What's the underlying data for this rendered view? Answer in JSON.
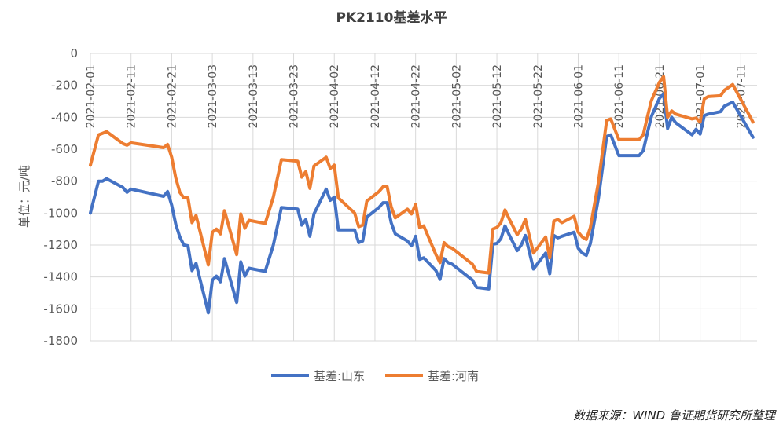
{
  "chart_data": {
    "type": "line",
    "title": "PK2110基差水平",
    "ylabel": "单位：元/吨",
    "xlabel": "",
    "ylim": [
      -1800,
      0
    ],
    "yticks": [
      0,
      -200,
      -400,
      -600,
      -800,
      -1000,
      -1200,
      -1400,
      -1600,
      -1800
    ],
    "ytick_labels": [
      "0",
      "-200",
      "-400",
      "-600",
      "-800",
      "-1000",
      "-1200",
      "-1400",
      "-1600",
      "-1800"
    ],
    "xlim": [
      "2021-02-01",
      "2021-07-15"
    ],
    "xticks": [
      "2021-02-01",
      "2021-02-11",
      "2021-02-21",
      "2021-03-03",
      "2021-03-13",
      "2021-03-23",
      "2021-04-02",
      "2021-04-12",
      "2021-04-22",
      "2021-05-02",
      "2021-05-12",
      "2021-05-22",
      "2021-06-01",
      "2021-06-11",
      "2021-06-21",
      "2021-07-01",
      "2021-07-11"
    ],
    "grid": true,
    "legend_position": "bottom",
    "series": [
      {
        "name": "基差:山东",
        "color": "#4472C4",
        "points": [
          [
            "2021-02-01",
            -1000
          ],
          [
            "2021-02-03",
            -800
          ],
          [
            "2021-02-04",
            -800
          ],
          [
            "2021-02-05",
            -785
          ],
          [
            "2021-02-09",
            -840
          ],
          [
            "2021-02-10",
            -870
          ],
          [
            "2021-02-11",
            -850
          ],
          [
            "2021-02-19",
            -895
          ],
          [
            "2021-02-20",
            -865
          ],
          [
            "2021-02-21",
            -950
          ],
          [
            "2021-02-22",
            -1070
          ],
          [
            "2021-02-23",
            -1150
          ],
          [
            "2021-02-24",
            -1200
          ],
          [
            "2021-02-25",
            -1205
          ],
          [
            "2021-02-26",
            -1360
          ],
          [
            "2021-02-27",
            -1315
          ],
          [
            "2021-03-01",
            -1520
          ],
          [
            "2021-03-02",
            -1625
          ],
          [
            "2021-03-03",
            -1420
          ],
          [
            "2021-03-04",
            -1395
          ],
          [
            "2021-03-05",
            -1430
          ],
          [
            "2021-03-06",
            -1285
          ],
          [
            "2021-03-09",
            -1560
          ],
          [
            "2021-03-10",
            -1305
          ],
          [
            "2021-03-11",
            -1395
          ],
          [
            "2021-03-12",
            -1345
          ],
          [
            "2021-03-16",
            -1365
          ],
          [
            "2021-03-18",
            -1200
          ],
          [
            "2021-03-20",
            -965
          ],
          [
            "2021-03-24",
            -975
          ],
          [
            "2021-03-25",
            -1075
          ],
          [
            "2021-03-26",
            -1040
          ],
          [
            "2021-03-27",
            -1145
          ],
          [
            "2021-03-28",
            -1005
          ],
          [
            "2021-03-31",
            -850
          ],
          [
            "2021-04-01",
            -920
          ],
          [
            "2021-04-02",
            -900
          ],
          [
            "2021-04-03",
            -1105
          ],
          [
            "2021-04-07",
            -1105
          ],
          [
            "2021-04-08",
            -1185
          ],
          [
            "2021-04-09",
            -1175
          ],
          [
            "2021-04-10",
            -1025
          ],
          [
            "2021-04-13",
            -965
          ],
          [
            "2021-04-14",
            -935
          ],
          [
            "2021-04-15",
            -935
          ],
          [
            "2021-04-16",
            -1060
          ],
          [
            "2021-04-17",
            -1130
          ],
          [
            "2021-04-20",
            -1175
          ],
          [
            "2021-04-21",
            -1205
          ],
          [
            "2021-04-22",
            -1145
          ],
          [
            "2021-04-23",
            -1290
          ],
          [
            "2021-04-24",
            -1280
          ],
          [
            "2021-04-27",
            -1360
          ],
          [
            "2021-04-28",
            -1415
          ],
          [
            "2021-04-29",
            -1285
          ],
          [
            "2021-04-30",
            -1310
          ],
          [
            "2021-05-01",
            -1320
          ],
          [
            "2021-05-06",
            -1420
          ],
          [
            "2021-05-07",
            -1465
          ],
          [
            "2021-05-10",
            -1475
          ],
          [
            "2021-05-11",
            -1195
          ],
          [
            "2021-05-12",
            -1190
          ],
          [
            "2021-05-13",
            -1160
          ],
          [
            "2021-05-14",
            -1080
          ],
          [
            "2021-05-15",
            -1135
          ],
          [
            "2021-05-17",
            -1235
          ],
          [
            "2021-05-18",
            -1200
          ],
          [
            "2021-05-19",
            -1140
          ],
          [
            "2021-05-21",
            -1350
          ],
          [
            "2021-05-24",
            -1250
          ],
          [
            "2021-05-25",
            -1380
          ],
          [
            "2021-05-26",
            -1140
          ],
          [
            "2021-05-27",
            -1155
          ],
          [
            "2021-05-28",
            -1145
          ],
          [
            "2021-05-31",
            -1120
          ],
          [
            "2021-06-01",
            -1220
          ],
          [
            "2021-06-02",
            -1250
          ],
          [
            "2021-06-03",
            -1265
          ],
          [
            "2021-06-04",
            -1190
          ],
          [
            "2021-06-06",
            -905
          ],
          [
            "2021-06-08",
            -520
          ],
          [
            "2021-06-09",
            -510
          ],
          [
            "2021-06-11",
            -640
          ],
          [
            "2021-06-16",
            -640
          ],
          [
            "2021-06-17",
            -610
          ],
          [
            "2021-06-18",
            -500
          ],
          [
            "2021-06-19",
            -395
          ],
          [
            "2021-06-21",
            -280
          ],
          [
            "2021-06-22",
            -255
          ],
          [
            "2021-06-23",
            -470
          ],
          [
            "2021-06-24",
            -400
          ],
          [
            "2021-06-25",
            -435
          ],
          [
            "2021-06-29",
            -510
          ],
          [
            "2021-06-30",
            -475
          ],
          [
            "2021-07-01",
            -505
          ],
          [
            "2021-07-02",
            -390
          ],
          [
            "2021-07-03",
            -380
          ],
          [
            "2021-07-06",
            -365
          ],
          [
            "2021-07-07",
            -330
          ],
          [
            "2021-07-09",
            -305
          ],
          [
            "2021-07-14",
            -525
          ]
        ]
      },
      {
        "name": "基差:河南",
        "color": "#ED7D31",
        "points": [
          [
            "2021-02-01",
            -700
          ],
          [
            "2021-02-03",
            -510
          ],
          [
            "2021-02-04",
            -500
          ],
          [
            "2021-02-05",
            -490
          ],
          [
            "2021-02-09",
            -565
          ],
          [
            "2021-02-10",
            -575
          ],
          [
            "2021-02-11",
            -560
          ],
          [
            "2021-02-19",
            -590
          ],
          [
            "2021-02-20",
            -570
          ],
          [
            "2021-02-21",
            -650
          ],
          [
            "2021-02-22",
            -780
          ],
          [
            "2021-02-23",
            -870
          ],
          [
            "2021-02-24",
            -905
          ],
          [
            "2021-02-25",
            -905
          ],
          [
            "2021-02-26",
            -1060
          ],
          [
            "2021-02-27",
            -1015
          ],
          [
            "2021-03-01",
            -1220
          ],
          [
            "2021-03-02",
            -1325
          ],
          [
            "2021-03-03",
            -1120
          ],
          [
            "2021-03-04",
            -1100
          ],
          [
            "2021-03-05",
            -1130
          ],
          [
            "2021-03-06",
            -985
          ],
          [
            "2021-03-09",
            -1260
          ],
          [
            "2021-03-10",
            -1005
          ],
          [
            "2021-03-11",
            -1095
          ],
          [
            "2021-03-12",
            -1045
          ],
          [
            "2021-03-16",
            -1065
          ],
          [
            "2021-03-18",
            -900
          ],
          [
            "2021-03-20",
            -665
          ],
          [
            "2021-03-24",
            -675
          ],
          [
            "2021-03-25",
            -775
          ],
          [
            "2021-03-26",
            -740
          ],
          [
            "2021-03-27",
            -845
          ],
          [
            "2021-03-28",
            -705
          ],
          [
            "2021-03-31",
            -650
          ],
          [
            "2021-04-01",
            -720
          ],
          [
            "2021-04-02",
            -700
          ],
          [
            "2021-04-03",
            -905
          ],
          [
            "2021-04-07",
            -1000
          ],
          [
            "2021-04-08",
            -1085
          ],
          [
            "2021-04-09",
            -1075
          ],
          [
            "2021-04-10",
            -925
          ],
          [
            "2021-04-13",
            -865
          ],
          [
            "2021-04-14",
            -835
          ],
          [
            "2021-04-15",
            -835
          ],
          [
            "2021-04-16",
            -960
          ],
          [
            "2021-04-17",
            -1030
          ],
          [
            "2021-04-20",
            -975
          ],
          [
            "2021-04-21",
            -1005
          ],
          [
            "2021-04-22",
            -945
          ],
          [
            "2021-04-23",
            -1090
          ],
          [
            "2021-04-24",
            -1080
          ],
          [
            "2021-04-27",
            -1260
          ],
          [
            "2021-04-28",
            -1310
          ],
          [
            "2021-04-29",
            -1185
          ],
          [
            "2021-04-30",
            -1210
          ],
          [
            "2021-05-01",
            -1220
          ],
          [
            "2021-05-06",
            -1320
          ],
          [
            "2021-05-07",
            -1365
          ],
          [
            "2021-05-10",
            -1375
          ],
          [
            "2021-05-11",
            -1100
          ],
          [
            "2021-05-12",
            -1090
          ],
          [
            "2021-05-13",
            -1060
          ],
          [
            "2021-05-14",
            -980
          ],
          [
            "2021-05-15",
            -1035
          ],
          [
            "2021-05-17",
            -1135
          ],
          [
            "2021-05-18",
            -1100
          ],
          [
            "2021-05-19",
            -1040
          ],
          [
            "2021-05-21",
            -1250
          ],
          [
            "2021-05-24",
            -1150
          ],
          [
            "2021-05-25",
            -1280
          ],
          [
            "2021-05-26",
            -1050
          ],
          [
            "2021-05-27",
            -1040
          ],
          [
            "2021-05-28",
            -1060
          ],
          [
            "2021-05-31",
            -1020
          ],
          [
            "2021-06-01",
            -1120
          ],
          [
            "2021-06-02",
            -1150
          ],
          [
            "2021-06-03",
            -1165
          ],
          [
            "2021-06-04",
            -1090
          ],
          [
            "2021-06-06",
            -805
          ],
          [
            "2021-06-08",
            -420
          ],
          [
            "2021-06-09",
            -410
          ],
          [
            "2021-06-11",
            -540
          ],
          [
            "2021-06-16",
            -540
          ],
          [
            "2021-06-17",
            -510
          ],
          [
            "2021-06-18",
            -400
          ],
          [
            "2021-06-19",
            -295
          ],
          [
            "2021-06-21",
            -180
          ],
          [
            "2021-06-22",
            -145
          ],
          [
            "2021-06-23",
            -400
          ],
          [
            "2021-06-24",
            -360
          ],
          [
            "2021-06-25",
            -380
          ],
          [
            "2021-06-29",
            -410
          ],
          [
            "2021-06-30",
            -405
          ],
          [
            "2021-07-01",
            -430
          ],
          [
            "2021-07-02",
            -285
          ],
          [
            "2021-07-03",
            -270
          ],
          [
            "2021-07-06",
            -265
          ],
          [
            "2021-07-07",
            -230
          ],
          [
            "2021-07-09",
            -195
          ],
          [
            "2021-07-14",
            -430
          ]
        ]
      }
    ]
  },
  "source_text": "数据来源：WIND 鲁证期货研究所整理"
}
